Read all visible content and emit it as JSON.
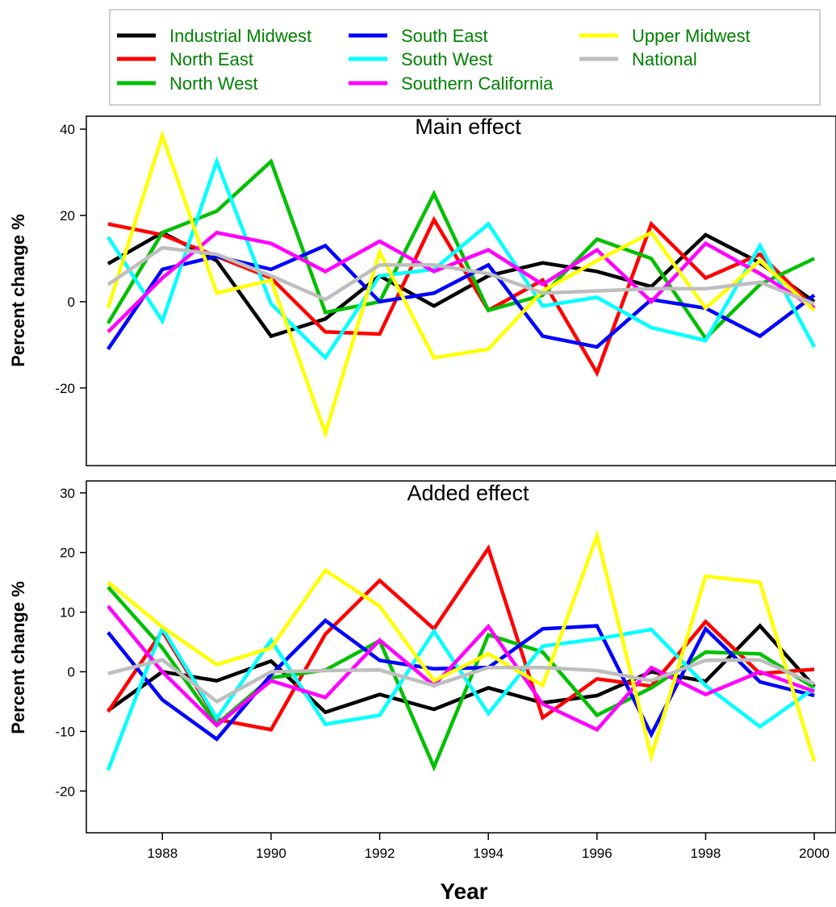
{
  "chart_data": [
    {
      "type": "line",
      "title": "Main effect",
      "xlabel": "",
      "ylabel": "Percent change %",
      "ylim": [
        -38,
        43
      ],
      "yticks": [
        -20,
        0,
        20,
        40
      ],
      "grid": false,
      "legend_placement": "top",
      "x": [
        1987,
        1988,
        1989,
        1990,
        1991,
        1992,
        1993,
        1994,
        1995,
        1996,
        1997,
        1998,
        1999,
        2000
      ],
      "series": [
        {
          "name": "Industrial Midwest",
          "color": "#000000",
          "values": [
            8.8,
            16,
            9.5,
            -8,
            -4,
            6,
            -1,
            6,
            9,
            7,
            3.5,
            15.5,
            9,
            0
          ]
        },
        {
          "name": "North East",
          "color": "#ff0000",
          "values": [
            18,
            15.5,
            10.5,
            5.5,
            -7,
            -7.5,
            19,
            -2,
            5,
            -16.5,
            18,
            5.5,
            11,
            -1.5
          ]
        },
        {
          "name": "North West",
          "color": "#00c000",
          "values": [
            -5,
            16,
            21,
            32.5,
            -2.5,
            0,
            25,
            -2,
            1.5,
            14.5,
            10,
            -8.5,
            4,
            10
          ]
        },
        {
          "name": "South East",
          "color": "#0000ff",
          "values": [
            -11,
            7.5,
            10.5,
            7.5,
            13,
            0,
            2,
            8.5,
            -8,
            -10.5,
            0.5,
            -1.5,
            -8,
            1.5
          ]
        },
        {
          "name": "South West",
          "color": "#00ffff",
          "values": [
            15,
            -4.5,
            32.5,
            -0.5,
            -13,
            6,
            7.5,
            18,
            -1,
            1,
            -6,
            -9,
            13,
            -10.5
          ]
        },
        {
          "name": "Southern California",
          "color": "#ff00ff",
          "values": [
            -7,
            5.5,
            16,
            13.5,
            7,
            14,
            7,
            12,
            4,
            12,
            0,
            13.5,
            6.5,
            -1.5
          ]
        },
        {
          "name": "Upper Midwest",
          "color": "#ffff00",
          "values": [
            -1.5,
            38.5,
            2,
            5,
            -30.5,
            11.5,
            -13,
            -11,
            2.5,
            9.5,
            16,
            -1.5,
            9.5,
            -2
          ]
        },
        {
          "name": "National",
          "color": "#bebebe",
          "values": [
            4,
            12.5,
            11,
            6,
            0.5,
            8.5,
            8.5,
            6.5,
            2,
            2.5,
            3,
            3,
            4.5,
            -0.5
          ]
        }
      ]
    },
    {
      "type": "line",
      "title": "Added effect",
      "xlabel": "Year",
      "ylabel": "Percent change %",
      "ylim": [
        -27,
        32
      ],
      "yticks": [
        -20,
        -10,
        0,
        10,
        20,
        30
      ],
      "xlim": [
        1986.6,
        2000.4
      ],
      "xticks": [
        1988,
        1990,
        1992,
        1994,
        1996,
        1998,
        2000
      ],
      "grid": false,
      "x": [
        1987,
        1988,
        1989,
        1990,
        1991,
        1992,
        1993,
        1994,
        1995,
        1996,
        1997,
        1998,
        1999,
        2000
      ],
      "series": [
        {
          "name": "Industrial Midwest",
          "color": "#000000",
          "values": [
            -6.5,
            0,
            -1.5,
            1.8,
            -6.8,
            -3.8,
            -6.3,
            -2.7,
            -5.2,
            -4,
            0,
            -1.6,
            7.7,
            -2.5
          ]
        },
        {
          "name": "North East",
          "color": "#ff0000",
          "values": [
            -6.7,
            6.8,
            -8,
            -9.7,
            6.3,
            15.3,
            7.2,
            20.7,
            -7.7,
            -1.2,
            -2.4,
            8.4,
            -0.3,
            0.4
          ]
        },
        {
          "name": "North West",
          "color": "#00c000",
          "values": [
            14.2,
            4,
            -8.8,
            -1,
            0.3,
            5.2,
            -16,
            6.2,
            3.3,
            -7.3,
            -2.7,
            3.3,
            3,
            -2.7
          ]
        },
        {
          "name": "South East",
          "color": "#0000ff",
          "values": [
            6.6,
            -4.7,
            -11.3,
            -0.5,
            8.6,
            1.9,
            0.5,
            0.7,
            7.2,
            7.7,
            -10.5,
            7.2,
            -1.7,
            -4
          ]
        },
        {
          "name": "South West",
          "color": "#00ffff",
          "values": [
            -16.5,
            7.3,
            -7.8,
            5.3,
            -8.8,
            -7.3,
            6.8,
            -7,
            4.3,
            5.5,
            7.1,
            -2.3,
            -9.2,
            -2.8
          ]
        },
        {
          "name": "Southern California",
          "color": "#ff00ff",
          "values": [
            11,
            0,
            -9,
            -1.5,
            -4.3,
            5.3,
            -2.3,
            7.6,
            -5.4,
            -9.7,
            0.7,
            -3.8,
            0,
            -3.3
          ]
        },
        {
          "name": "Upper Midwest",
          "color": "#ffff00",
          "values": [
            15,
            7.5,
            1.2,
            4,
            17,
            11,
            -1.5,
            3,
            -2.3,
            22.8,
            -14.2,
            16,
            15,
            -15
          ]
        },
        {
          "name": "National",
          "color": "#bebebe",
          "values": [
            -0.3,
            2,
            -5,
            0,
            0.2,
            0.3,
            -2.3,
            0.7,
            0.7,
            0.2,
            -1.5,
            1.9,
            2,
            -2
          ]
        }
      ]
    }
  ],
  "legend": {
    "entries": [
      {
        "label": "Industrial Midwest",
        "color": "#000000"
      },
      {
        "label": "North East",
        "color": "#ff0000"
      },
      {
        "label": "North West",
        "color": "#00c000"
      },
      {
        "label": "South East",
        "color": "#0000ff"
      },
      {
        "label": "South West",
        "color": "#00ffff"
      },
      {
        "label": "Southern California",
        "color": "#ff00ff"
      },
      {
        "label": "Upper Midwest",
        "color": "#ffff00"
      },
      {
        "label": "National",
        "color": "#bebebe"
      }
    ],
    "text_color": "#008000"
  }
}
